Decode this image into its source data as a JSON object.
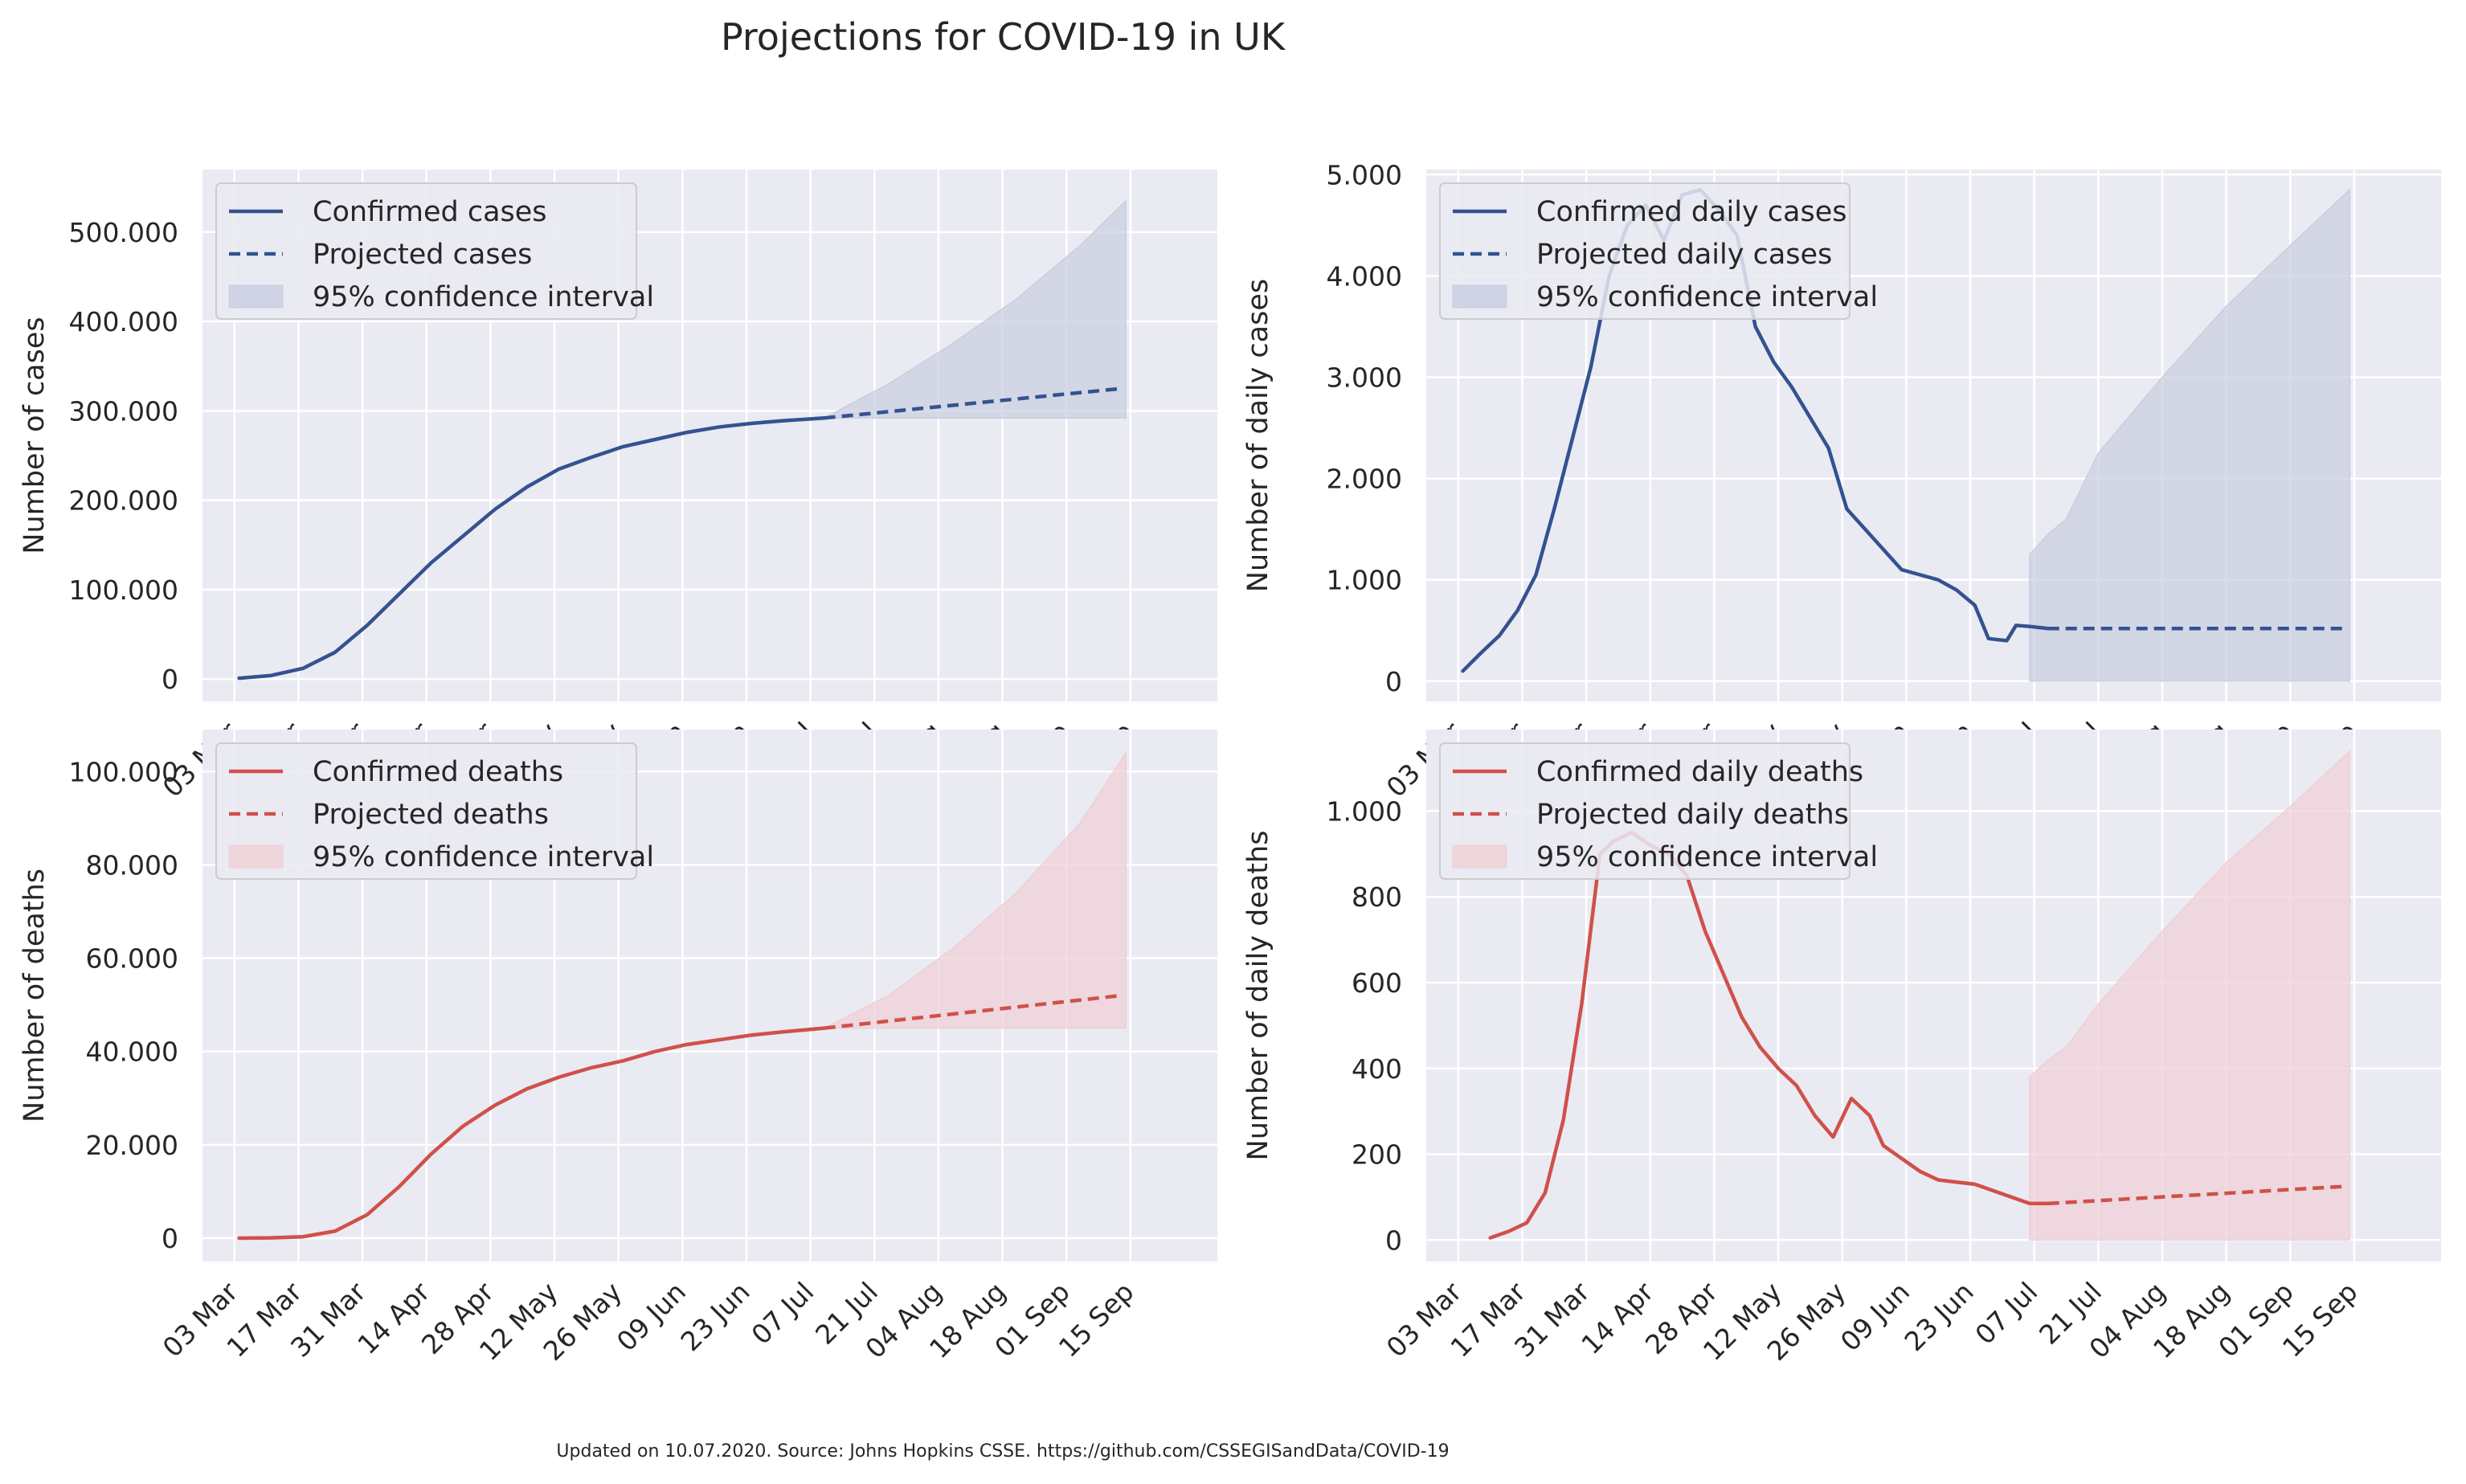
{
  "title": "Projections for COVID-19 in UK",
  "footer": "Updated on 10.07.2020. Source: Johns Hopkins CSSE. https://github.com/CSSEGISandData/COVID-19",
  "colors": {
    "background": "#eaeaf2",
    "grid": "#ffffff",
    "blue": "#34528f",
    "red": "#d0504a",
    "blue_fill": "#c8cde0",
    "red_fill": "#f0cfd6"
  },
  "date_ticks": [
    "03 Mar",
    "17 Mar",
    "31 Mar",
    "14 Apr",
    "28 Apr",
    "12 May",
    "26 May",
    "09 Jun",
    "23 Jun",
    "07 Jul",
    "21 Jul",
    "04 Aug",
    "18 Aug",
    "01 Sep",
    "15 Sep"
  ],
  "chart_data": [
    {
      "id": "cases",
      "type": "line",
      "color": "blue",
      "ylabel": "Number of cases",
      "ylim": [
        -25000,
        570000
      ],
      "yticks": [
        0,
        100000,
        200000,
        300000,
        400000,
        500000
      ],
      "ytick_labels": [
        "0",
        "100.000",
        "200.000",
        "300.000",
        "400.000",
        "500.000"
      ],
      "legend_position": "upper-left",
      "legend": [
        "Confirmed cases",
        "Projected cases",
        "95% confidence interval"
      ],
      "series": [
        {
          "name": "Confirmed cases",
          "style": "solid",
          "x": [
            "2020-03-04",
            "2020-03-11",
            "2020-03-18",
            "2020-03-25",
            "2020-04-01",
            "2020-04-08",
            "2020-04-15",
            "2020-04-22",
            "2020-04-29",
            "2020-05-06",
            "2020-05-13",
            "2020-05-20",
            "2020-05-27",
            "2020-06-03",
            "2020-06-10",
            "2020-06-17",
            "2020-06-24",
            "2020-07-01",
            "2020-07-10"
          ],
          "y": [
            1000,
            4000,
            12000,
            30000,
            60000,
            95000,
            130000,
            160000,
            190000,
            215000,
            235000,
            248000,
            260000,
            268000,
            276000,
            282000,
            286000,
            289000,
            292000
          ]
        },
        {
          "name": "Projected cases",
          "style": "dashed",
          "x": [
            "2020-07-10",
            "2020-09-13"
          ],
          "y": [
            292000,
            325000
          ]
        }
      ],
      "confidence_interval": {
        "x": [
          "2020-07-10",
          "2020-07-24",
          "2020-08-07",
          "2020-08-21",
          "2020-09-04",
          "2020-09-14"
        ],
        "lower": [
          292000,
          292000,
          292000,
          292000,
          292000,
          292000
        ],
        "upper": [
          292000,
          330000,
          375000,
          425000,
          485000,
          535000
        ]
      }
    },
    {
      "id": "daily_cases",
      "type": "line",
      "color": "blue",
      "ylabel": "Number of daily cases",
      "ylim": [
        -200,
        5050
      ],
      "yticks": [
        0,
        1000,
        2000,
        3000,
        4000,
        5000
      ],
      "ytick_labels": [
        "0",
        "1.000",
        "2.000",
        "3.000",
        "4.000",
        "5.000"
      ],
      "legend_position": "upper-left",
      "legend": [
        "Confirmed daily cases",
        "Projected daily cases",
        "95% confidence interval"
      ],
      "series": [
        {
          "name": "Confirmed daily cases",
          "style": "solid",
          "x": [
            "2020-03-04",
            "2020-03-08",
            "2020-03-12",
            "2020-03-16",
            "2020-03-20",
            "2020-03-24",
            "2020-03-28",
            "2020-04-01",
            "2020-04-05",
            "2020-04-09",
            "2020-04-13",
            "2020-04-17",
            "2020-04-21",
            "2020-04-25",
            "2020-04-29",
            "2020-05-03",
            "2020-05-07",
            "2020-05-11",
            "2020-05-15",
            "2020-05-19",
            "2020-05-23",
            "2020-05-27",
            "2020-05-31",
            "2020-06-04",
            "2020-06-08",
            "2020-06-12",
            "2020-06-16",
            "2020-06-20",
            "2020-06-24",
            "2020-06-27",
            "2020-07-01",
            "2020-07-03",
            "2020-07-06",
            "2020-07-10"
          ],
          "y": [
            100,
            280,
            450,
            700,
            1050,
            1700,
            2400,
            3100,
            4000,
            4500,
            4700,
            4350,
            4800,
            4850,
            4650,
            4400,
            3500,
            3150,
            2900,
            2600,
            2300,
            1700,
            1500,
            1300,
            1100,
            1050,
            1000,
            900,
            750,
            420,
            400,
            550,
            540,
            520
          ]
        },
        {
          "name": "Projected daily cases",
          "style": "dashed",
          "x": [
            "2020-07-10",
            "2020-09-13"
          ],
          "y": [
            520,
            520
          ]
        }
      ],
      "confidence_interval": {
        "x": [
          "2020-07-06",
          "2020-07-10",
          "2020-07-14",
          "2020-07-21",
          "2020-08-04",
          "2020-08-18",
          "2020-09-01",
          "2020-09-14"
        ],
        "lower": [
          0,
          0,
          0,
          0,
          0,
          0,
          0,
          0
        ],
        "upper": [
          1250,
          1450,
          1600,
          2250,
          3000,
          3700,
          4300,
          4850
        ]
      }
    },
    {
      "id": "deaths",
      "type": "line",
      "color": "red",
      "ylabel": "Number of deaths",
      "ylim": [
        -5000,
        109000
      ],
      "yticks": [
        0,
        20000,
        40000,
        60000,
        80000,
        100000
      ],
      "ytick_labels": [
        "0",
        "20.000",
        "40.000",
        "60.000",
        "80.000",
        "100.000"
      ],
      "legend_position": "upper-left",
      "legend": [
        "Confirmed deaths",
        "Projected deaths",
        "95% confidence interval"
      ],
      "series": [
        {
          "name": "Confirmed deaths",
          "style": "solid",
          "x": [
            "2020-03-04",
            "2020-03-11",
            "2020-03-18",
            "2020-03-25",
            "2020-04-01",
            "2020-04-08",
            "2020-04-15",
            "2020-04-22",
            "2020-04-29",
            "2020-05-06",
            "2020-05-13",
            "2020-05-20",
            "2020-05-27",
            "2020-06-03",
            "2020-06-10",
            "2020-06-17",
            "2020-06-24",
            "2020-07-01",
            "2020-07-10"
          ],
          "y": [
            0,
            50,
            300,
            1500,
            5000,
            11000,
            18000,
            24000,
            28500,
            32000,
            34500,
            36500,
            38000,
            40000,
            41500,
            42500,
            43500,
            44200,
            45000
          ]
        },
        {
          "name": "Projected deaths",
          "style": "dashed",
          "x": [
            "2020-07-10",
            "2020-09-13"
          ],
          "y": [
            45000,
            52000
          ]
        }
      ],
      "confidence_interval": {
        "x": [
          "2020-07-10",
          "2020-07-24",
          "2020-08-07",
          "2020-08-21",
          "2020-09-04",
          "2020-09-14"
        ],
        "lower": [
          45000,
          45000,
          45000,
          45000,
          45000,
          45000
        ],
        "upper": [
          45000,
          52000,
          62000,
          74000,
          89000,
          104000
        ]
      }
    },
    {
      "id": "daily_deaths",
      "type": "line",
      "color": "red",
      "ylabel": "Number of daily deaths",
      "ylim": [
        -50,
        1190
      ],
      "yticks": [
        0,
        200,
        400,
        600,
        800,
        1000
      ],
      "ytick_labels": [
        "0",
        "200",
        "400",
        "600",
        "800",
        "1.000"
      ],
      "legend_position": "upper-left",
      "legend": [
        "Confirmed daily deaths",
        "Projected daily deaths",
        "95% confidence interval"
      ],
      "series": [
        {
          "name": "Confirmed daily deaths",
          "style": "solid",
          "x": [
            "2020-03-10",
            "2020-03-14",
            "2020-03-18",
            "2020-03-22",
            "2020-03-26",
            "2020-03-30",
            "2020-04-03",
            "2020-04-06",
            "2020-04-10",
            "2020-04-14",
            "2020-04-18",
            "2020-04-22",
            "2020-04-26",
            "2020-04-30",
            "2020-05-04",
            "2020-05-08",
            "2020-05-12",
            "2020-05-16",
            "2020-05-20",
            "2020-05-24",
            "2020-05-28",
            "2020-06-01",
            "2020-06-04",
            "2020-06-08",
            "2020-06-12",
            "2020-06-16",
            "2020-06-20",
            "2020-06-24",
            "2020-06-28",
            "2020-07-02",
            "2020-07-06",
            "2020-07-10"
          ],
          "y": [
            5,
            20,
            40,
            110,
            280,
            550,
            900,
            930,
            950,
            920,
            900,
            850,
            720,
            620,
            520,
            450,
            400,
            360,
            290,
            240,
            330,
            290,
            220,
            190,
            160,
            140,
            135,
            130,
            115,
            100,
            85,
            85
          ]
        },
        {
          "name": "Projected daily deaths",
          "style": "dashed",
          "x": [
            "2020-07-10",
            "2020-09-13"
          ],
          "y": [
            85,
            125
          ]
        }
      ],
      "confidence_interval": {
        "x": [
          "2020-07-06",
          "2020-07-10",
          "2020-07-14",
          "2020-07-21",
          "2020-08-04",
          "2020-08-18",
          "2020-09-01",
          "2020-09-14"
        ],
        "lower": [
          0,
          0,
          0,
          0,
          0,
          0,
          0,
          0
        ],
        "upper": [
          380,
          420,
          450,
          550,
          720,
          880,
          1010,
          1140
        ]
      }
    }
  ]
}
